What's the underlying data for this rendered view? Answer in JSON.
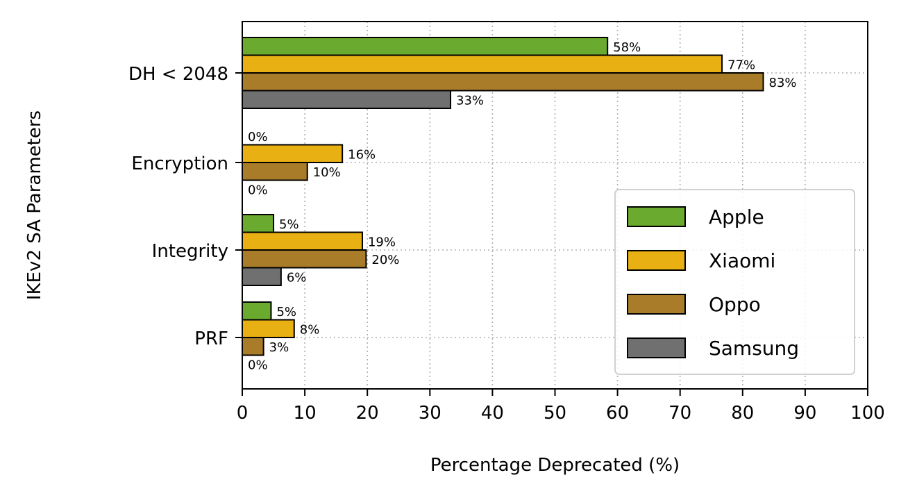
{
  "chart_data": {
    "type": "bar",
    "orientation": "horizontal",
    "xlabel": "Percentage Deprecated (%)",
    "ylabel": "IKEv2 SA Parameters",
    "xlim": [
      0,
      100
    ],
    "x_ticks": [
      0,
      10,
      20,
      30,
      40,
      50,
      60,
      70,
      80,
      90,
      100
    ],
    "grid": true,
    "legend_position": "lower-right",
    "categories": [
      "DH < 2048",
      "Encryption",
      "Integrity",
      "PRF"
    ],
    "series": [
      {
        "name": "Apple",
        "color": "#6aaa2e",
        "values": [
          58.4,
          0,
          5.0,
          4.6
        ],
        "labels": [
          "58%",
          "0%",
          "5%",
          "5%"
        ]
      },
      {
        "name": "Xiaomi",
        "color": "#e9b014",
        "values": [
          76.7,
          16.0,
          19.2,
          8.3
        ],
        "labels": [
          "77%",
          "16%",
          "19%",
          "8%"
        ]
      },
      {
        "name": "Oppo",
        "color": "#a97c2a",
        "values": [
          83.3,
          10.4,
          19.8,
          3.4
        ],
        "labels": [
          "83%",
          "10%",
          "20%",
          "3%"
        ]
      },
      {
        "name": "Samsung",
        "color": "#707070",
        "values": [
          33.3,
          0,
          6.2,
          0
        ],
        "labels": [
          "33%",
          "0%",
          "6%",
          "0%"
        ]
      }
    ]
  }
}
